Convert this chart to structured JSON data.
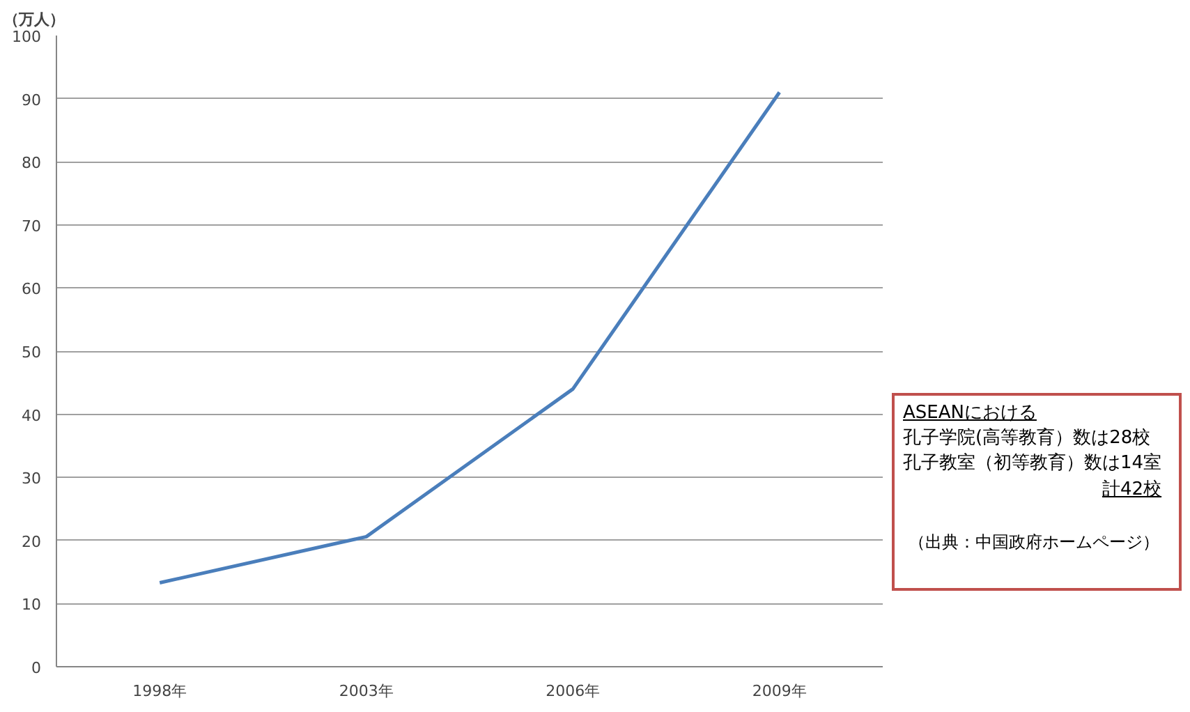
{
  "chart_data": {
    "type": "line",
    "ylabel": "（万人）",
    "categories": [
      "1998年",
      "2003年",
      "2006年",
      "2009年"
    ],
    "series": [
      {
        "color": "#4a7ebb",
        "values": [
          13.3,
          20.6,
          44,
          91
        ]
      }
    ],
    "ylim": [
      0,
      100
    ],
    "yticks": [
      0,
      10,
      20,
      30,
      40,
      50,
      60,
      70,
      80,
      90,
      100
    ],
    "grid": "y",
    "marker": "none",
    "line_style": "solid",
    "annotations": [
      "ASEANにおける",
      "孔子学院(高等教育）数は28校",
      "孔子教室（初等教育）数は14室",
      "計42校",
      "（出典：中国政府ホームページ）"
    ]
  }
}
